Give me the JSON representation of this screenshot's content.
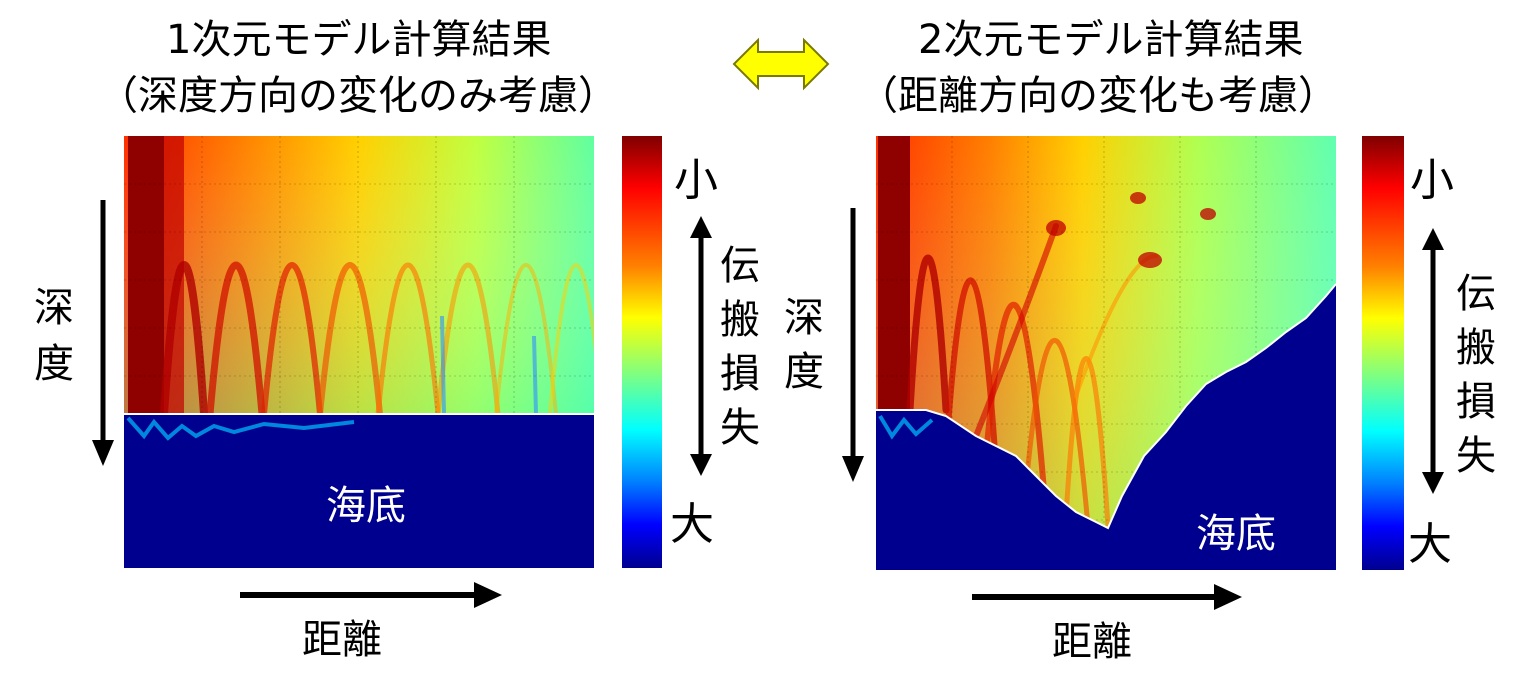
{
  "left_panel": {
    "title_line1": "1次元モデル計算結果",
    "title_line2": "（深度方向の変化のみ考慮）",
    "depth_label": "深度",
    "range_label": "距離",
    "seabed_label": "海底"
  },
  "right_panel": {
    "title_line1": "2次元モデル計算結果",
    "title_line2": "（距離方向の変化も考慮）",
    "depth_label": "深度",
    "range_label": "距離",
    "seabed_label": "海底"
  },
  "colorbar": {
    "quantity_label": "伝搬損失",
    "small_label": "小",
    "large_label": "大",
    "colors": [
      "#7f0000",
      "#ff0000",
      "#ff8000",
      "#ffff00",
      "#80ff80",
      "#00ffff",
      "#0080ff",
      "#0000ff",
      "#00008f"
    ]
  },
  "icons": {
    "compare": "double-arrow-icon"
  },
  "colors": {
    "seabed": "#00008f",
    "compare_arrow_fill": "#ffff00",
    "compare_arrow_stroke": "#7a7a00"
  }
}
